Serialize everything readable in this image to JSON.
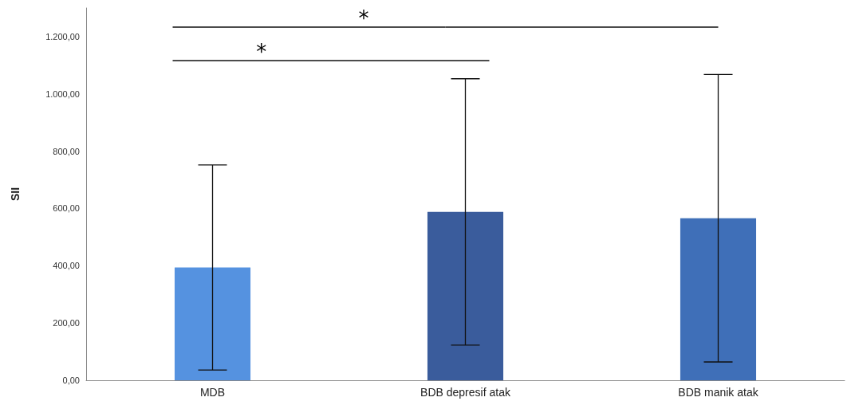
{
  "chart_data": {
    "type": "bar",
    "ylabel": "SII",
    "categories": [
      "MDB",
      "BDB depresif atak",
      "BDB manik atak"
    ],
    "values": [
      394,
      588,
      566
    ],
    "errors": [
      358,
      465,
      502
    ],
    "colors": [
      "#5592e0",
      "#3a5c9c",
      "#3f6fb8"
    ],
    "ylim": [
      0,
      1300
    ],
    "yticks": [
      {
        "value": 0,
        "label": "0,00"
      },
      {
        "value": 200,
        "label": "200,00"
      },
      {
        "value": 400,
        "label": "400,00"
      },
      {
        "value": 600,
        "label": "600,00"
      },
      {
        "value": 800,
        "label": "800,00"
      },
      {
        "value": 1000,
        "label": "1.000,00"
      },
      {
        "value": 1200,
        "label": "1.200,00"
      }
    ],
    "grid": false,
    "annotations": [
      "*",
      "*"
    ]
  }
}
